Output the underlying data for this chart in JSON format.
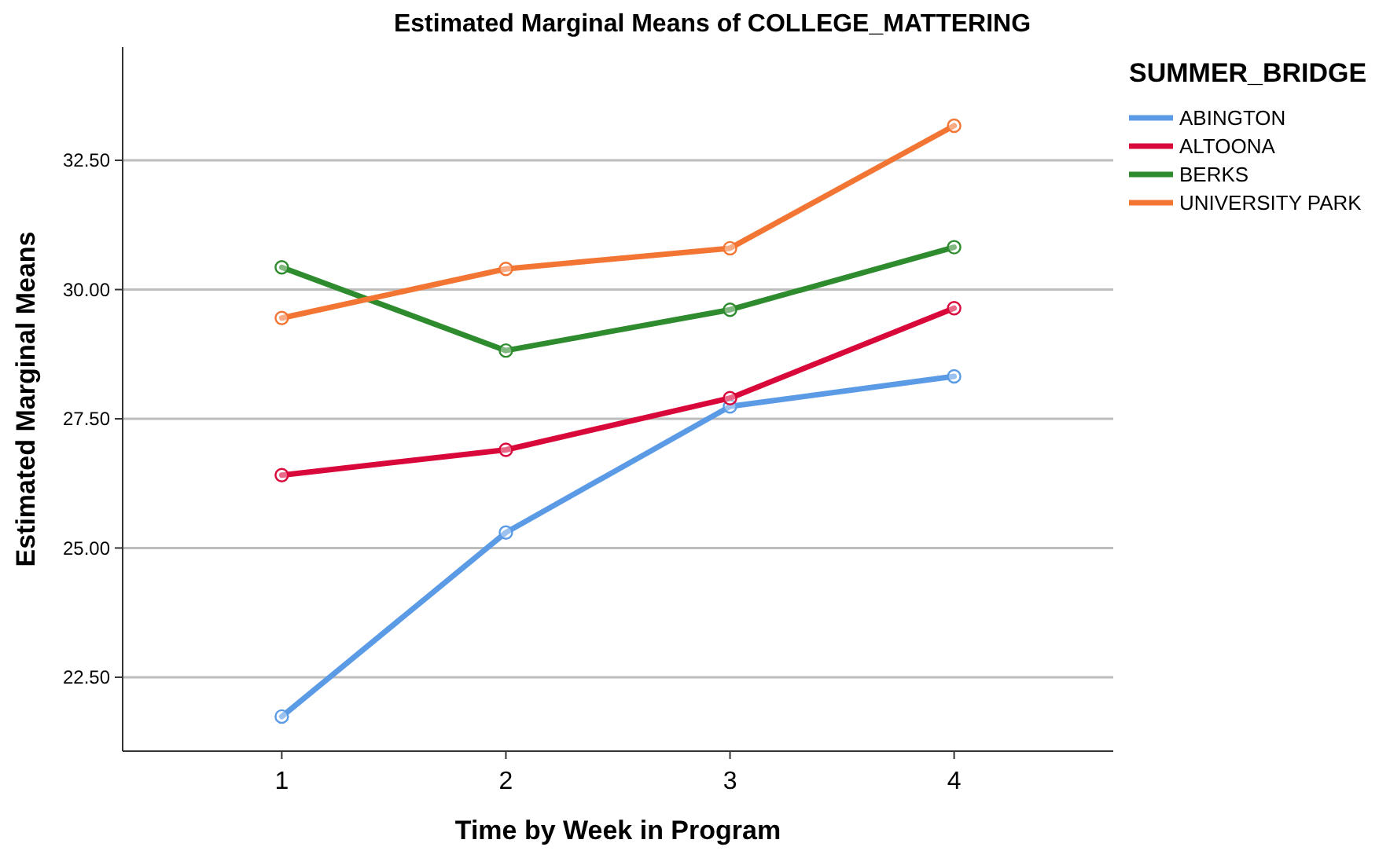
{
  "chart_data": {
    "type": "line",
    "title": "Estimated Marginal Means of COLLEGE_MATTERING",
    "xlabel": "Time by Week in Program",
    "ylabel": "Estimated Marginal Means",
    "legend_title": "SUMMER_BRIDGE",
    "x": [
      1,
      2,
      3,
      4
    ],
    "xlim": [
      0.29,
      4.71
    ],
    "xticks": [
      1,
      2,
      3,
      4
    ],
    "ylim": [
      21.07,
      34.69
    ],
    "yticks": [
      {
        "value": 22.5,
        "label": "22.50"
      },
      {
        "value": 25,
        "label": "25.00"
      },
      {
        "value": 27.5,
        "label": "27.50"
      },
      {
        "value": 30,
        "label": "30.00"
      },
      {
        "value": 32.5,
        "label": "32.50"
      }
    ],
    "grid": "y",
    "legend": "right",
    "marker": "circle",
    "line_style": "solid",
    "series": [
      {
        "name": "ABINGTON",
        "color": "#5b9be6",
        "values": [
          21.74,
          25.3,
          27.74,
          28.32
        ]
      },
      {
        "name": "ALTOONA",
        "color": "#d9083a",
        "values": [
          26.41,
          26.9,
          27.9,
          29.64
        ]
      },
      {
        "name": "BERKS",
        "color": "#2e8b2e",
        "values": [
          30.43,
          28.82,
          29.61,
          30.82
        ]
      },
      {
        "name": "UNIVERSITY PARK",
        "color": "#f37534",
        "values": [
          29.45,
          30.4,
          30.8,
          33.17
        ]
      }
    ]
  }
}
